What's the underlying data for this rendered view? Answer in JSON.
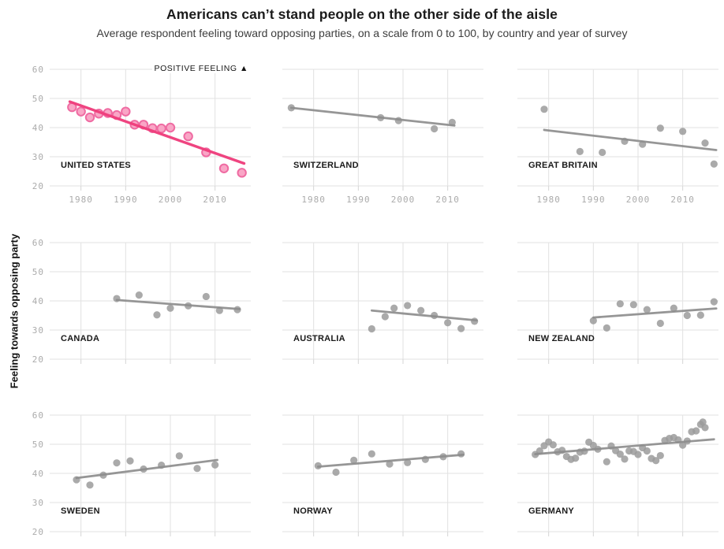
{
  "chart_data": {
    "type": "scatter",
    "title": "Americans can’t stand people on the other side of the aisle",
    "subtitle": "Average respondent feeling toward opposing parties, on a scale from 0 to 100, by country and year of survey",
    "ylabel": "Feeling towards opposing party",
    "annotation": "POSITIVE FEELING ▲",
    "xlim": [
      1973,
      2018
    ],
    "ylim": [
      20,
      60
    ],
    "x_ticks": [
      1980,
      1990,
      2000,
      2010
    ],
    "y_ticks": [
      60,
      50,
      40,
      30,
      20
    ],
    "grid": true,
    "layout": "3x3 small multiples; y tick labels on left column only, x tick labels under top row only",
    "colors": {
      "highlight_line": "#EE3E7C",
      "highlight_dot_fill": "#F9A6C6",
      "highlight_dot_stroke": "#EF6BA2",
      "gray_line": "#8D8D8D",
      "gray_dot": "#9B9B9B",
      "grid": "#E1E1E1",
      "tick": "#D5D5D5",
      "tick_label": "#ABABAB",
      "panel_label": "#1A1A1A"
    },
    "panels": [
      {
        "label": "UNITED STATES",
        "highlight": true,
        "points": [
          [
            1978,
            47
          ],
          [
            1980,
            45.5
          ],
          [
            1982,
            43.5
          ],
          [
            1984,
            44.8
          ],
          [
            1986,
            45
          ],
          [
            1988,
            44.3
          ],
          [
            1990,
            45.5
          ],
          [
            1992,
            41
          ],
          [
            1994,
            41
          ],
          [
            1996,
            39.8
          ],
          [
            1998,
            39.7
          ],
          [
            2000,
            40
          ],
          [
            2004,
            37
          ],
          [
            2008,
            31.5
          ],
          [
            2012,
            26
          ],
          [
            2016,
            24.5
          ]
        ],
        "trend": [
          [
            1977.5,
            48.9
          ],
          [
            2016.5,
            27.7
          ]
        ]
      },
      {
        "label": "SWITZERLAND",
        "highlight": false,
        "points": [
          [
            1975,
            46.8
          ],
          [
            1995,
            43.4
          ],
          [
            1999,
            42.4
          ],
          [
            2007,
            39.6
          ],
          [
            2011,
            41.8
          ]
        ],
        "trend": [
          [
            1975,
            46.8
          ],
          [
            2011.5,
            40.7
          ]
        ]
      },
      {
        "label": "GREAT BRITAIN",
        "highlight": false,
        "points": [
          [
            1979,
            46.3
          ],
          [
            1987,
            31.8
          ],
          [
            1992,
            31.5
          ],
          [
            1997,
            35.3
          ],
          [
            2001,
            34.3
          ],
          [
            2005,
            39.8
          ],
          [
            2010,
            38.7
          ],
          [
            2015,
            34.7
          ],
          [
            2017,
            27.5
          ]
        ],
        "trend": [
          [
            1979,
            39.2
          ],
          [
            2017.5,
            32.3
          ]
        ]
      },
      {
        "label": "CANADA",
        "highlight": false,
        "points": [
          [
            1988,
            40.8
          ],
          [
            1993,
            42
          ],
          [
            1997,
            35.2
          ],
          [
            2000,
            37.5
          ],
          [
            2004,
            38.3
          ],
          [
            2008,
            41.5
          ],
          [
            2011,
            36.7
          ],
          [
            2015,
            37
          ]
        ],
        "trend": [
          [
            1988,
            40.3
          ],
          [
            2015.5,
            37.2
          ]
        ]
      },
      {
        "label": "AUSTRALIA",
        "highlight": false,
        "points": [
          [
            1993,
            30.4
          ],
          [
            1996,
            34.6
          ],
          [
            1998,
            37.5
          ],
          [
            2001,
            38.4
          ],
          [
            2004,
            36.7
          ],
          [
            2007,
            35
          ],
          [
            2010,
            32.5
          ],
          [
            2013,
            30.5
          ],
          [
            2016,
            33
          ]
        ],
        "trend": [
          [
            1993,
            36.7
          ],
          [
            2016.5,
            33.3
          ]
        ]
      },
      {
        "label": "NEW ZEALAND",
        "highlight": false,
        "points": [
          [
            1990,
            33.2
          ],
          [
            1993,
            30.7
          ],
          [
            1996,
            39
          ],
          [
            1999,
            38.7
          ],
          [
            2002,
            37
          ],
          [
            2005,
            32.3
          ],
          [
            2008,
            37.5
          ],
          [
            2011,
            35
          ],
          [
            2014,
            35.1
          ],
          [
            2017,
            39.7
          ]
        ],
        "trend": [
          [
            1990,
            34.3
          ],
          [
            2017.5,
            37.4
          ]
        ]
      },
      {
        "label": "SWEDEN",
        "highlight": false,
        "points": [
          [
            1979,
            37.8
          ],
          [
            1982,
            36
          ],
          [
            1985,
            39.4
          ],
          [
            1988,
            43.6
          ],
          [
            1991,
            44.3
          ],
          [
            1994,
            41.5
          ],
          [
            1998,
            42.8
          ],
          [
            2002,
            46
          ],
          [
            2006,
            41.7
          ],
          [
            2010,
            42.9
          ]
        ],
        "trend": [
          [
            1979,
            38.4
          ],
          [
            2010.5,
            44.6
          ]
        ]
      },
      {
        "label": "NORWAY",
        "highlight": false,
        "points": [
          [
            1981,
            42.6
          ],
          [
            1985,
            40.4
          ],
          [
            1989,
            44.5
          ],
          [
            1993,
            46.7
          ],
          [
            1997,
            43.2
          ],
          [
            2001,
            43.7
          ],
          [
            2005,
            44.8
          ],
          [
            2009,
            45.7
          ],
          [
            2013,
            46.7
          ]
        ],
        "trend": [
          [
            1981,
            42.3
          ],
          [
            2013.5,
            46.4
          ]
        ]
      },
      {
        "label": "GERMANY",
        "highlight": false,
        "points": [
          [
            1977,
            46.5
          ],
          [
            1978,
            47.7
          ],
          [
            1979,
            49.5
          ],
          [
            1980,
            50.8
          ],
          [
            1981,
            49.8
          ],
          [
            1982,
            47.4
          ],
          [
            1983,
            47.9
          ],
          [
            1984,
            45.8
          ],
          [
            1985,
            44.8
          ],
          [
            1986,
            45.2
          ],
          [
            1987,
            47.3
          ],
          [
            1988,
            47.6
          ],
          [
            1989,
            50.7
          ],
          [
            1990,
            49.6
          ],
          [
            1991,
            48.3
          ],
          [
            1993,
            44
          ],
          [
            1994,
            49.4
          ],
          [
            1995,
            47.8
          ],
          [
            1996,
            46.6
          ],
          [
            1997,
            44.9
          ],
          [
            1998,
            47.7
          ],
          [
            1999,
            47.5
          ],
          [
            2000,
            46.5
          ],
          [
            2001,
            48.8
          ],
          [
            2002,
            47.7
          ],
          [
            2003,
            45.1
          ],
          [
            2004,
            44.4
          ],
          [
            2005,
            46.1
          ],
          [
            2006,
            51.3
          ],
          [
            2007,
            52
          ],
          [
            2008,
            52.3
          ],
          [
            2009,
            51.5
          ],
          [
            2010,
            49.7
          ],
          [
            2011,
            51.1
          ],
          [
            2012,
            54.3
          ],
          [
            2013,
            54.6
          ],
          [
            2014,
            56.8
          ],
          [
            2014.5,
            57.6
          ],
          [
            2015,
            55.7
          ]
        ],
        "trend": [
          [
            1977,
            46.6
          ],
          [
            2017,
            51.7
          ]
        ]
      }
    ]
  }
}
